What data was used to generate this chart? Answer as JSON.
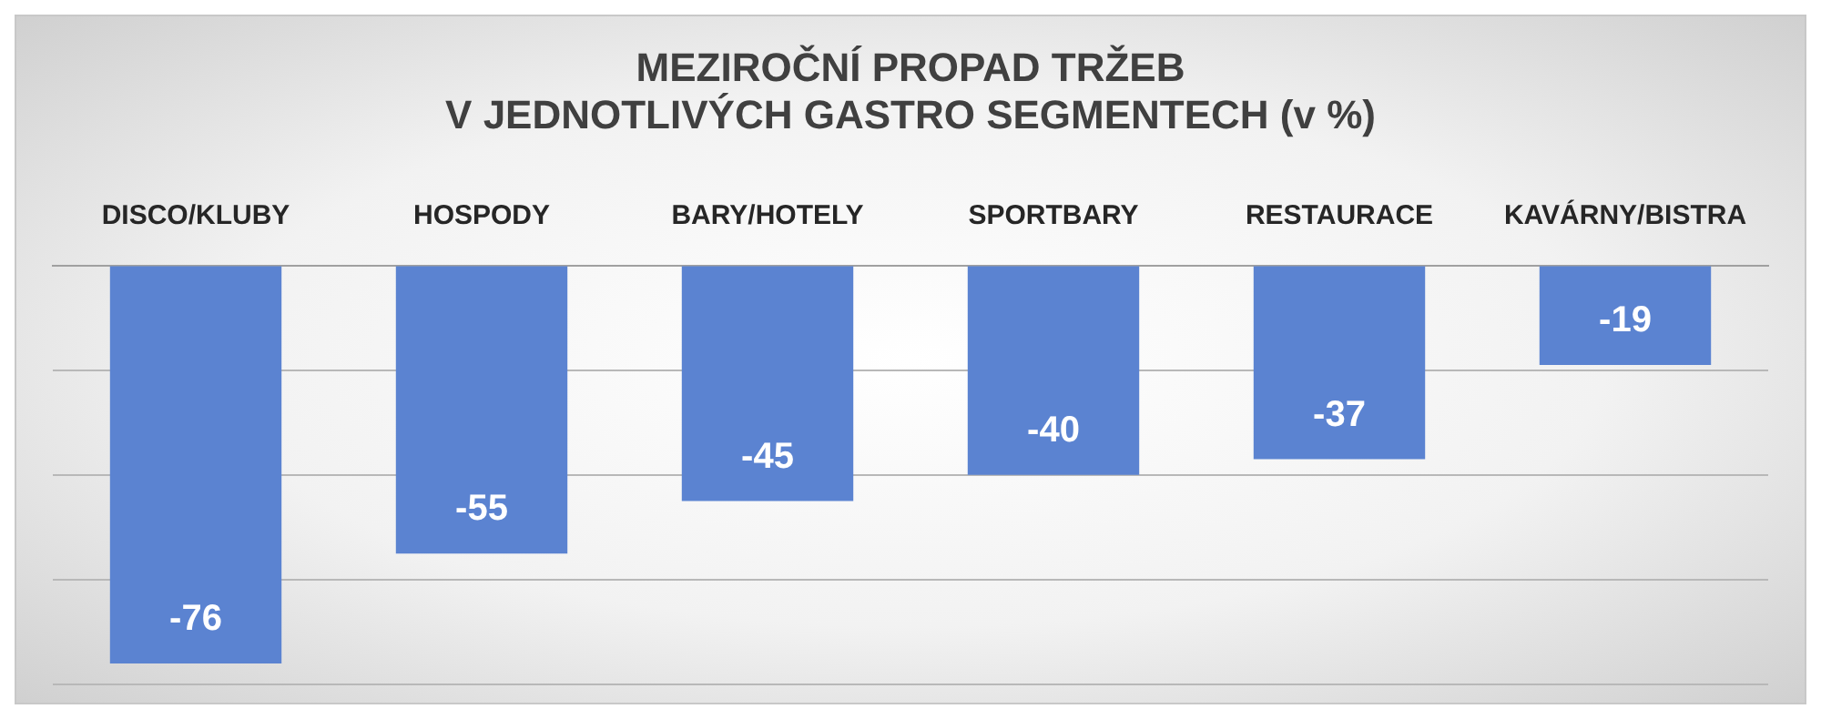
{
  "chart_data": {
    "type": "bar",
    "title": [
      "MEZIROČNÍ PROPAD TRŽEB",
      "V JEDNOTLIVÝCH GASTRO SEGMENTECH (v %)"
    ],
    "categories": [
      "DISCO/KLUBY",
      "HOSPODY",
      "BARY/HOTELY",
      "SPORTBARY",
      "RESTAURACE",
      "KAVÁRNY/BISTRA"
    ],
    "values": [
      -76,
      -55,
      -45,
      -40,
      -37,
      -19
    ],
    "color": "#5b83d1",
    "ylim": [
      -80,
      0
    ],
    "yticks": [
      {
        "value": -80,
        "label": null
      },
      {
        "value": -60,
        "label": null
      },
      {
        "value": -40,
        "label": null
      },
      {
        "value": -20,
        "label": null
      },
      {
        "value": 0,
        "label": null
      }
    ],
    "grid": "y",
    "tick_labels": "x",
    "data_labels": true
  }
}
